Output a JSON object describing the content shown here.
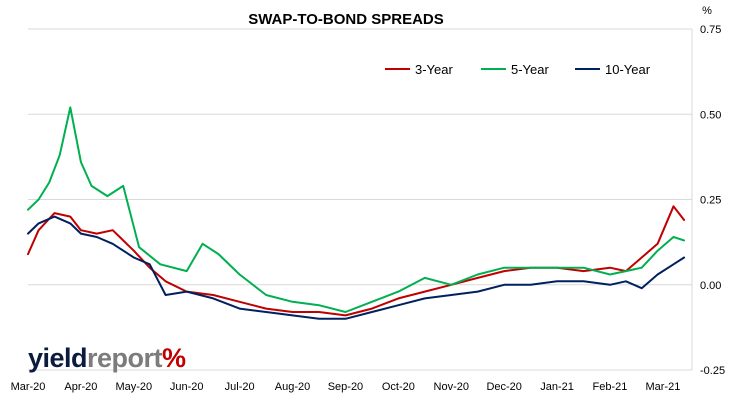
{
  "chart_data": {
    "type": "line",
    "title": "SWAP-TO-BOND SPREADS",
    "ylabel": "%",
    "ylim": [
      -0.25,
      0.75
    ],
    "y_ticks": [
      {
        "value": 0.75,
        "label": "0.75"
      },
      {
        "value": 0.5,
        "label": "0.50"
      },
      {
        "value": 0.25,
        "label": "0.25"
      },
      {
        "value": 0.0,
        "label": "0.00"
      },
      {
        "value": -0.25,
        "label": "-0.25"
      }
    ],
    "x_ticks": [
      "Mar-20",
      "Apr-20",
      "May-20",
      "Jun-20",
      "Jul-20",
      "Aug-20",
      "Sep-20",
      "Oct-20",
      "Nov-20",
      "Dec-20",
      "Jan-21",
      "Feb-21",
      "Mar-21"
    ],
    "grid": true,
    "legend_position": "top-right",
    "series": [
      {
        "name": "3-Year",
        "color": "#c00000",
        "x": [
          0,
          0.2,
          0.5,
          0.8,
          1.0,
          1.3,
          1.6,
          2.0,
          2.3,
          2.6,
          3.0,
          3.5,
          4.0,
          4.5,
          5.0,
          5.5,
          6.0,
          6.5,
          7.0,
          7.5,
          8.0,
          8.5,
          9.0,
          9.5,
          10.0,
          10.5,
          11.0,
          11.3,
          11.6,
          11.9,
          12.2,
          12.4
        ],
        "y": [
          0.09,
          0.16,
          0.21,
          0.2,
          0.16,
          0.15,
          0.16,
          0.1,
          0.05,
          0.01,
          -0.02,
          -0.03,
          -0.05,
          -0.07,
          -0.08,
          -0.08,
          -0.09,
          -0.07,
          -0.04,
          -0.02,
          0.0,
          0.02,
          0.04,
          0.05,
          0.05,
          0.04,
          0.05,
          0.04,
          0.08,
          0.12,
          0.23,
          0.19
        ]
      },
      {
        "name": "5-Year",
        "color": "#00b050",
        "x": [
          0,
          0.2,
          0.4,
          0.6,
          0.8,
          1.0,
          1.2,
          1.5,
          1.8,
          2.1,
          2.5,
          3.0,
          3.3,
          3.6,
          4.0,
          4.5,
          5.0,
          5.5,
          6.0,
          6.5,
          7.0,
          7.5,
          8.0,
          8.5,
          9.0,
          9.5,
          10.0,
          10.5,
          11.0,
          11.3,
          11.6,
          11.9,
          12.2,
          12.4
        ],
        "y": [
          0.22,
          0.25,
          0.3,
          0.38,
          0.52,
          0.36,
          0.29,
          0.26,
          0.29,
          0.11,
          0.06,
          0.04,
          0.12,
          0.09,
          0.03,
          -0.03,
          -0.05,
          -0.06,
          -0.08,
          -0.05,
          -0.02,
          0.02,
          0.0,
          0.03,
          0.05,
          0.05,
          0.05,
          0.05,
          0.03,
          0.04,
          0.05,
          0.1,
          0.14,
          0.13
        ]
      },
      {
        "name": "10-Year",
        "color": "#002060",
        "x": [
          0,
          0.2,
          0.5,
          0.8,
          1.0,
          1.3,
          1.6,
          2.0,
          2.3,
          2.6,
          3.0,
          3.5,
          4.0,
          4.5,
          5.0,
          5.5,
          6.0,
          6.5,
          7.0,
          7.5,
          8.0,
          8.5,
          9.0,
          9.5,
          10.0,
          10.5,
          11.0,
          11.3,
          11.6,
          11.9,
          12.2,
          12.4
        ],
        "y": [
          0.15,
          0.18,
          0.2,
          0.18,
          0.15,
          0.14,
          0.12,
          0.08,
          0.06,
          -0.03,
          -0.02,
          -0.04,
          -0.07,
          -0.08,
          -0.09,
          -0.1,
          -0.1,
          -0.08,
          -0.06,
          -0.04,
          -0.03,
          -0.02,
          0.0,
          0.0,
          0.01,
          0.01,
          0.0,
          0.01,
          -0.01,
          0.03,
          0.06,
          0.08
        ]
      }
    ]
  },
  "logo": {
    "part1": "yield",
    "part2": "report",
    "part3": "%"
  }
}
